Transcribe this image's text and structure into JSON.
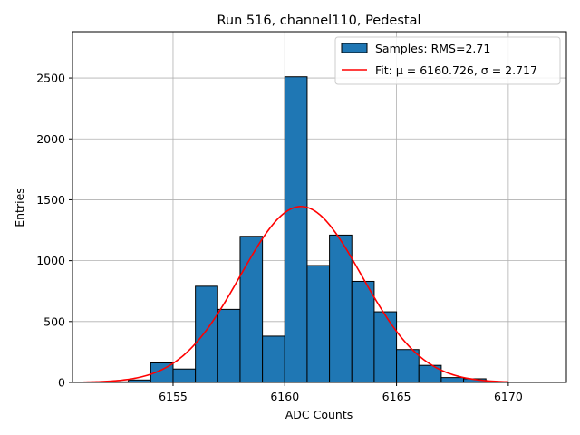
{
  "chart_data": {
    "type": "bar",
    "title": "Run 516, channel110, Pedestal",
    "xlabel": "ADC Counts",
    "ylabel": "Entries",
    "xlim": [
      6150.5,
      6172.6
    ],
    "ylim": [
      0,
      2880
    ],
    "xticks": [
      6155,
      6160,
      6165,
      6170
    ],
    "yticks": [
      0,
      500,
      1000,
      1500,
      2000,
      2500
    ],
    "grid": true,
    "legend_position": "top-right",
    "bin_width": 1,
    "bins": [
      {
        "left": 6152.0,
        "count": 5
      },
      {
        "left": 6153.0,
        "count": 20
      },
      {
        "left": 6154.0,
        "count": 160
      },
      {
        "left": 6155.0,
        "count": 110
      },
      {
        "left": 6156.0,
        "count": 790
      },
      {
        "left": 6157.0,
        "count": 600
      },
      {
        "left": 6158.0,
        "count": 1200
      },
      {
        "left": 6159.0,
        "count": 380
      },
      {
        "left": 6160.0,
        "count": 2510
      },
      {
        "left": 6161.0,
        "count": 960
      },
      {
        "left": 6162.0,
        "count": 1210
      },
      {
        "left": 6163.0,
        "count": 830
      },
      {
        "left": 6164.0,
        "count": 580
      },
      {
        "left": 6165.0,
        "count": 270
      },
      {
        "left": 6166.0,
        "count": 140
      },
      {
        "left": 6167.0,
        "count": 40
      },
      {
        "left": 6168.0,
        "count": 30
      }
    ],
    "fit": {
      "mu": 6160.726,
      "sigma": 2.717,
      "amplitude": 1445,
      "x_range": [
        6151,
        6170
      ]
    },
    "series": [
      {
        "name": "Samples: RMS=2.71",
        "kind": "histogram",
        "color": "#1f77b4"
      },
      {
        "name": "Fit: μ = 6160.726, σ = 2.717",
        "kind": "line",
        "color": "#ff0000"
      }
    ]
  }
}
